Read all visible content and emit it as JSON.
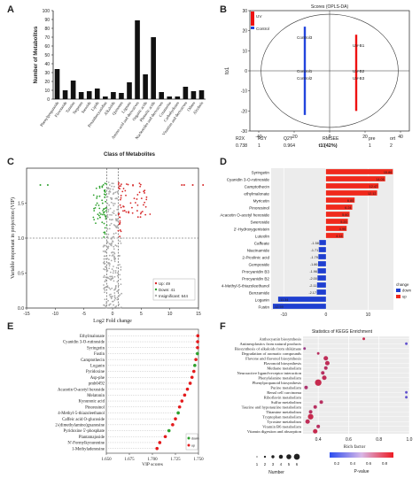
{
  "panels": {
    "A": {
      "letter": "A"
    },
    "B": {
      "letter": "B"
    },
    "C": {
      "letter": "C"
    },
    "D": {
      "letter": "D"
    },
    "E": {
      "letter": "E"
    },
    "F": {
      "letter": "F"
    }
  },
  "chart_data": [
    {
      "id": "A",
      "type": "bar",
      "ylabel": "Number of Metabolites",
      "xlabel": "Class of Metabolites",
      "ylim": [
        0,
        100
      ],
      "yticks": [
        0,
        10,
        20,
        30,
        40,
        50,
        60,
        70,
        80,
        90,
        100
      ],
      "categories": [
        "Phenylpropanoids",
        "Flavonoids",
        "Tannins",
        "Terpenes",
        "Steroids",
        "Lipids",
        "Proanthocyanidins",
        "Alkaloids",
        "Quinones",
        "Lignans",
        "Amino acid and derivatives",
        "Organic acids",
        "Phenolic acids",
        "Nucleotides and derivatives",
        "Coumarins",
        "Carbohydrates",
        "Vitamins and derivatives",
        "Others",
        "Alcohols"
      ],
      "values": [
        34,
        10,
        21,
        8,
        9,
        12,
        3,
        8,
        7,
        19,
        89,
        28,
        70,
        8,
        3,
        3,
        14,
        9,
        10
      ]
    },
    {
      "id": "B",
      "type": "scatter",
      "title": "Scores (OPLS-DA)",
      "xlabel": "t1 (42%)",
      "ylabel": "to1",
      "xlim": [
        -45,
        45
      ],
      "ylim": [
        -30,
        30
      ],
      "xticks": [
        -40,
        -20,
        0,
        20,
        40
      ],
      "yticks": [
        -30,
        -20,
        -10,
        0,
        10,
        20,
        30
      ],
      "legend": [
        "Control",
        "UV"
      ],
      "groups": [
        {
          "name": "Control",
          "color": "#2244dd",
          "x": -14,
          "y_range": [
            -22,
            22
          ],
          "labels": [
            "Control3",
            "Control1",
            "Control2"
          ]
        },
        {
          "name": "UV",
          "color": "#ee1111",
          "x": 15,
          "y_range": [
            -20,
            18
          ],
          "labels": [
            "UV-B1",
            "UV-B2",
            "UV-B3"
          ]
        }
      ],
      "stats_header": [
        "R2X",
        "R2Y",
        "Q2Y",
        "RMSEE",
        "pre",
        "ort"
      ],
      "stats_values": [
        "0.738",
        "1",
        "0.964",
        "0",
        "1",
        "2"
      ]
    },
    {
      "id": "C",
      "type": "scatter",
      "xlabel": "Log2 Fold change",
      "ylabel": "Variable important in projection (VIP)",
      "xlim": [
        -15,
        15
      ],
      "ylim": [
        0,
        2
      ],
      "xticks": [
        -15,
        -10,
        -5,
        0,
        5,
        10,
        15
      ],
      "yticks": [
        0.0,
        0.5,
        1.0,
        1.5
      ],
      "legend": [
        "Up: 49",
        "Down: 41",
        "Insignificant: 644"
      ]
    },
    {
      "id": "D",
      "type": "bar",
      "orientation": "horizontal",
      "xlim": [
        -13,
        16
      ],
      "xticks": [
        -10,
        0,
        10
      ],
      "legend_title": "change",
      "legend": [
        "down",
        "up"
      ],
      "categories": [
        "Syringetin",
        "Cyanidin 3-O-rutinoside",
        "Camptothecin",
        "ethylmalonate",
        "Myricetin",
        "Pinoresinol",
        "Acacetin O-acetyl hexoside",
        "Sweroside",
        "2'-Hydroxygenistein",
        "Luteolin",
        "Caffeate",
        "Niacinamide",
        "2-Picolinic acid",
        "Gemposide",
        "Procyanidin B3",
        "Procyanidin B2",
        "4-Methyl-5-thiazoleethanol",
        "Benzamide",
        "Loganin",
        "Fustin"
      ],
      "values": [
        15.86,
        14.05,
        12.47,
        12.12,
        6.8,
        6.24,
        5.6,
        5.2,
        4.9,
        4.14,
        -1.58,
        -1.71,
        -1.79,
        -1.86,
        -1.96,
        -2.0,
        -2.11,
        -2.17,
        -11.34,
        -12.59
      ],
      "value_labels": [
        "15.86",
        "14.05",
        "12.47",
        "12.12",
        "6.80",
        "6.24",
        "5.60",
        "5.20",
        "4.90",
        "4.14",
        "-1.58",
        "-1.71",
        "-1.79",
        "-1.86",
        "-1.96",
        "-2.00",
        "-2.11",
        "-2.17",
        "-11.34",
        "-12.59"
      ]
    },
    {
      "id": "E",
      "type": "scatter",
      "xlabel": "VIP scores",
      "xlim": [
        1.65,
        1.75
      ],
      "xticks": [
        "1.650",
        "1.675",
        "1.700",
        "1.725",
        "1.750"
      ],
      "legend": [
        "down",
        "up"
      ],
      "categories": [
        "Ethylmalonate",
        "Cyanidin 3-O-rutinoside",
        "Syringetin",
        "Fustin",
        "Camptothecin",
        "Loganin",
        "Pyridoxine",
        "Asp-phe",
        "pmb0492",
        "Acacetin O-acetyl hexoside",
        "Melatonin",
        "Kynurenic acid",
        "Pinoresinol",
        "4-Methyl-5-thiazoleethanol",
        "Caffeic acid O-glucoside",
        "2-(dimethylamino)guanosine",
        "Pyridoxine 5'-phosphate",
        "Plantamajoside",
        "N'-Formylkynurenine",
        "1-Methyladenosine"
      ],
      "values": [
        1.7493,
        1.7491,
        1.749,
        1.7489,
        1.7472,
        1.746,
        1.745,
        1.743,
        1.741,
        1.738,
        1.735,
        1.732,
        1.7295,
        1.728,
        1.725,
        1.722,
        1.718,
        1.714,
        1.708,
        1.705
      ],
      "change": [
        "up",
        "up",
        "up",
        "down",
        "up",
        "down",
        "up",
        "up",
        "up",
        "up",
        "up",
        "up",
        "up",
        "down",
        "up",
        "up",
        "down",
        "up",
        "up",
        "up"
      ]
    },
    {
      "id": "F",
      "type": "scatter",
      "title": "Statistics of KEGG Enrichment",
      "xlabel": "Rich factor",
      "xlim": [
        0.3,
        1.0
      ],
      "xticks": [
        "0.4",
        "0.6",
        "0.8",
        "1.0"
      ],
      "size_legend_title": "Number",
      "size_legend": [
        "1",
        "2",
        "3",
        "4",
        "5",
        "6"
      ],
      "color_legend_title": "P-value",
      "color_legend": [
        "0.2",
        "0.4",
        "0.6",
        "0.8"
      ],
      "categories": [
        "Anthocyanin biosynthesis",
        "Antineoplastics from natural products",
        "Biosynthesis of alkaloids from shikimate",
        "Degradation of aromatic compounds",
        "Flavone and flavonol biosynthesis",
        "Flavonoid biosynthesis",
        "Methane metabolism",
        "Neuroactive ligand-receptor interaction",
        "Phenylalanine metabolism",
        "Phenylpropanoid biosynthesis",
        "Purine metabolism",
        "Renal cell carcinoma",
        "Riboflavin metabolism",
        "Sulfur metabolism",
        "Taurine and hypotaurine metabolism",
        "Thiamine metabolism",
        "Tryptophan metabolism",
        "Tyrosine metabolism",
        "Vitamin B6 metabolism",
        "Vitamin digestion and absorption"
      ],
      "rich_factor": [
        0.7,
        0.98,
        0.31,
        0.4,
        0.45,
        0.46,
        0.45,
        0.43,
        0.44,
        0.4,
        0.32,
        0.98,
        0.98,
        0.42,
        0.38,
        0.35,
        0.35,
        0.33,
        0.4,
        0.38
      ],
      "number": [
        1,
        1,
        1,
        1,
        3,
        3,
        2,
        2,
        3,
        5,
        2,
        1,
        1,
        2,
        2,
        2,
        4,
        3,
        2,
        3
      ],
      "p_value": [
        0.08,
        0.35,
        0.2,
        0.12,
        0.1,
        0.1,
        0.12,
        0.12,
        0.1,
        0.08,
        0.15,
        0.35,
        0.35,
        0.12,
        0.12,
        0.12,
        0.08,
        0.1,
        0.12,
        0.08
      ]
    }
  ]
}
